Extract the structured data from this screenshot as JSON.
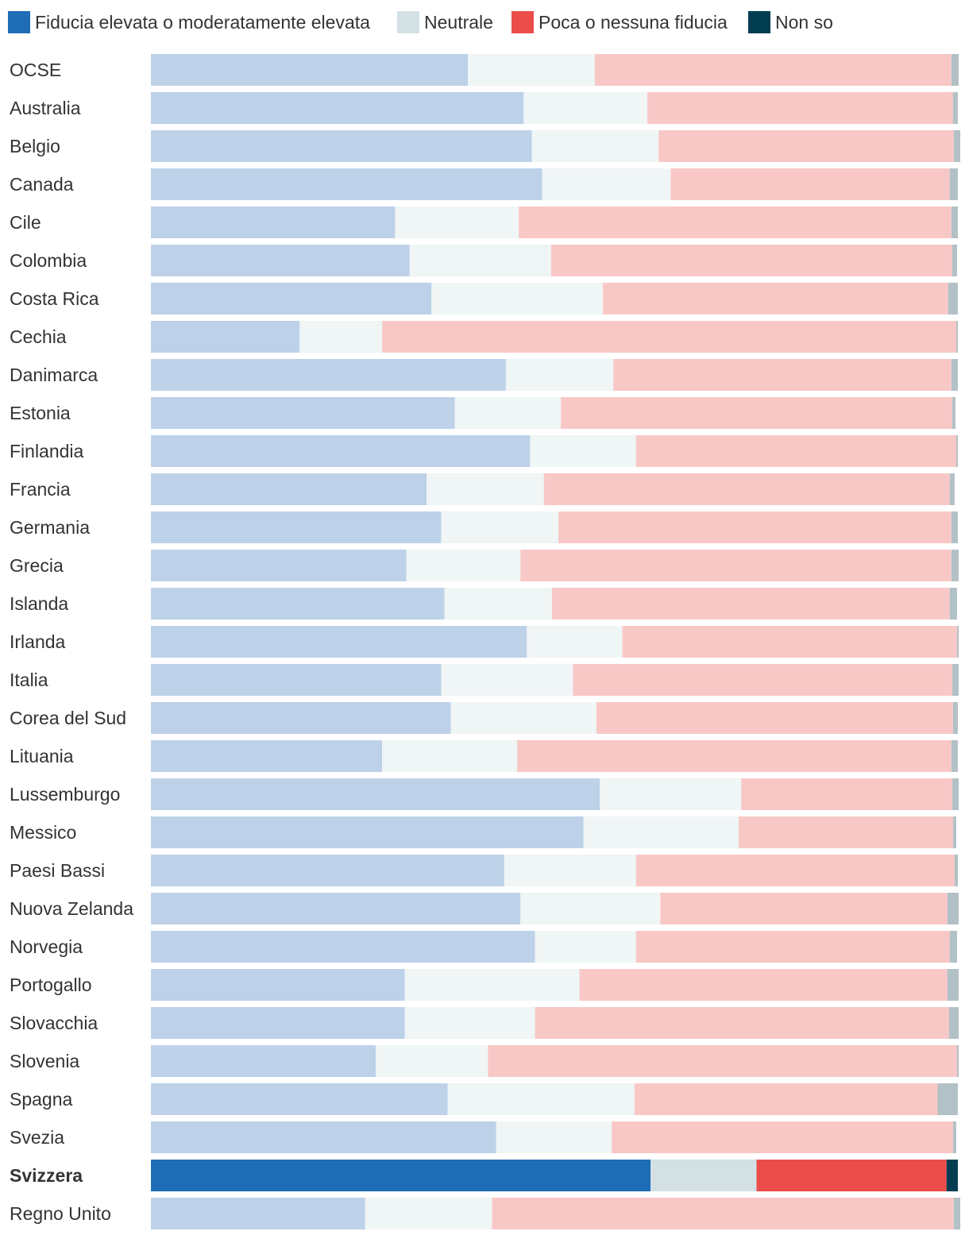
{
  "chart_data": {
    "type": "bar",
    "orientation": "horizontal",
    "stacked": true,
    "normalized": true,
    "title": "",
    "xlabel": "",
    "ylabel": "",
    "xlim": [
      0,
      100
    ],
    "legend": "top-left",
    "grid": false,
    "highlight_category": "Svizzera",
    "categories": [
      "OCSE",
      "Australia",
      "Belgio",
      "Canada",
      "Cile",
      "Colombia",
      "Costa Rica",
      "Cechia",
      "Danimarca",
      "Estonia",
      "Finlandia",
      "Francia",
      "Germania",
      "Grecia",
      "Islanda",
      "Irlanda",
      "Italia",
      "Corea del Sud",
      "Lituania",
      "Lussemburgo",
      "Messico",
      "Paesi Bassi",
      "Nuova Zelanda",
      "Norvegia",
      "Portogallo",
      "Slovacchia",
      "Slovenia",
      "Spagna",
      "Svezia",
      "Svizzera",
      "Regno Unito"
    ],
    "series": [
      {
        "name": "Fiducia elevata o moderatamente elevata",
        "color": "#1f6db7",
        "color_muted": "#bdd2e9",
        "values": [
          39.2,
          46.1,
          47.1,
          48.4,
          30.2,
          32.0,
          34.7,
          18.4,
          43.9,
          37.6,
          46.9,
          34.1,
          35.9,
          31.6,
          36.3,
          46.5,
          35.9,
          37.1,
          28.6,
          55.5,
          53.5,
          43.7,
          45.7,
          47.5,
          31.4,
          31.4,
          27.8,
          36.7,
          42.7,
          61.8,
          26.5
        ]
      },
      {
        "name": "Neutrale",
        "color": "#d3e1e5",
        "color_muted": "#f0f5f5",
        "values": [
          15.7,
          15.3,
          15.7,
          15.9,
          15.3,
          17.5,
          21.2,
          10.2,
          13.3,
          13.1,
          13.1,
          14.5,
          14.5,
          14.1,
          13.3,
          11.8,
          16.3,
          18.0,
          16.7,
          17.5,
          19.2,
          16.3,
          17.3,
          12.5,
          21.6,
          16.1,
          13.9,
          23.1,
          14.3,
          13.1,
          15.7
        ]
      },
      {
        "name": "Poca o nessuna fiducia",
        "color": "#eb4d4b",
        "color_muted": "#f8c8c7",
        "values": [
          44.1,
          37.8,
          36.5,
          34.5,
          53.5,
          49.6,
          42.7,
          71.0,
          41.8,
          48.4,
          39.6,
          50.2,
          48.6,
          53.3,
          49.2,
          41.4,
          46.9,
          44.1,
          53.7,
          26.1,
          26.5,
          39.4,
          35.5,
          38.8,
          45.5,
          51.2,
          58.0,
          37.5,
          42.2,
          23.5,
          57.1
        ]
      },
      {
        "name": "Non so",
        "color": "#023d52",
        "color_muted": "#b2c1c5",
        "values": [
          0.9,
          0.6,
          0.8,
          1.0,
          0.8,
          0.6,
          1.2,
          0.2,
          0.8,
          0.4,
          0.2,
          0.6,
          0.8,
          0.9,
          0.9,
          0.2,
          0.8,
          0.6,
          0.8,
          0.8,
          0.4,
          0.4,
          1.4,
          0.9,
          1.4,
          1.2,
          0.2,
          2.5,
          0.4,
          1.4,
          0.8
        ]
      }
    ]
  }
}
